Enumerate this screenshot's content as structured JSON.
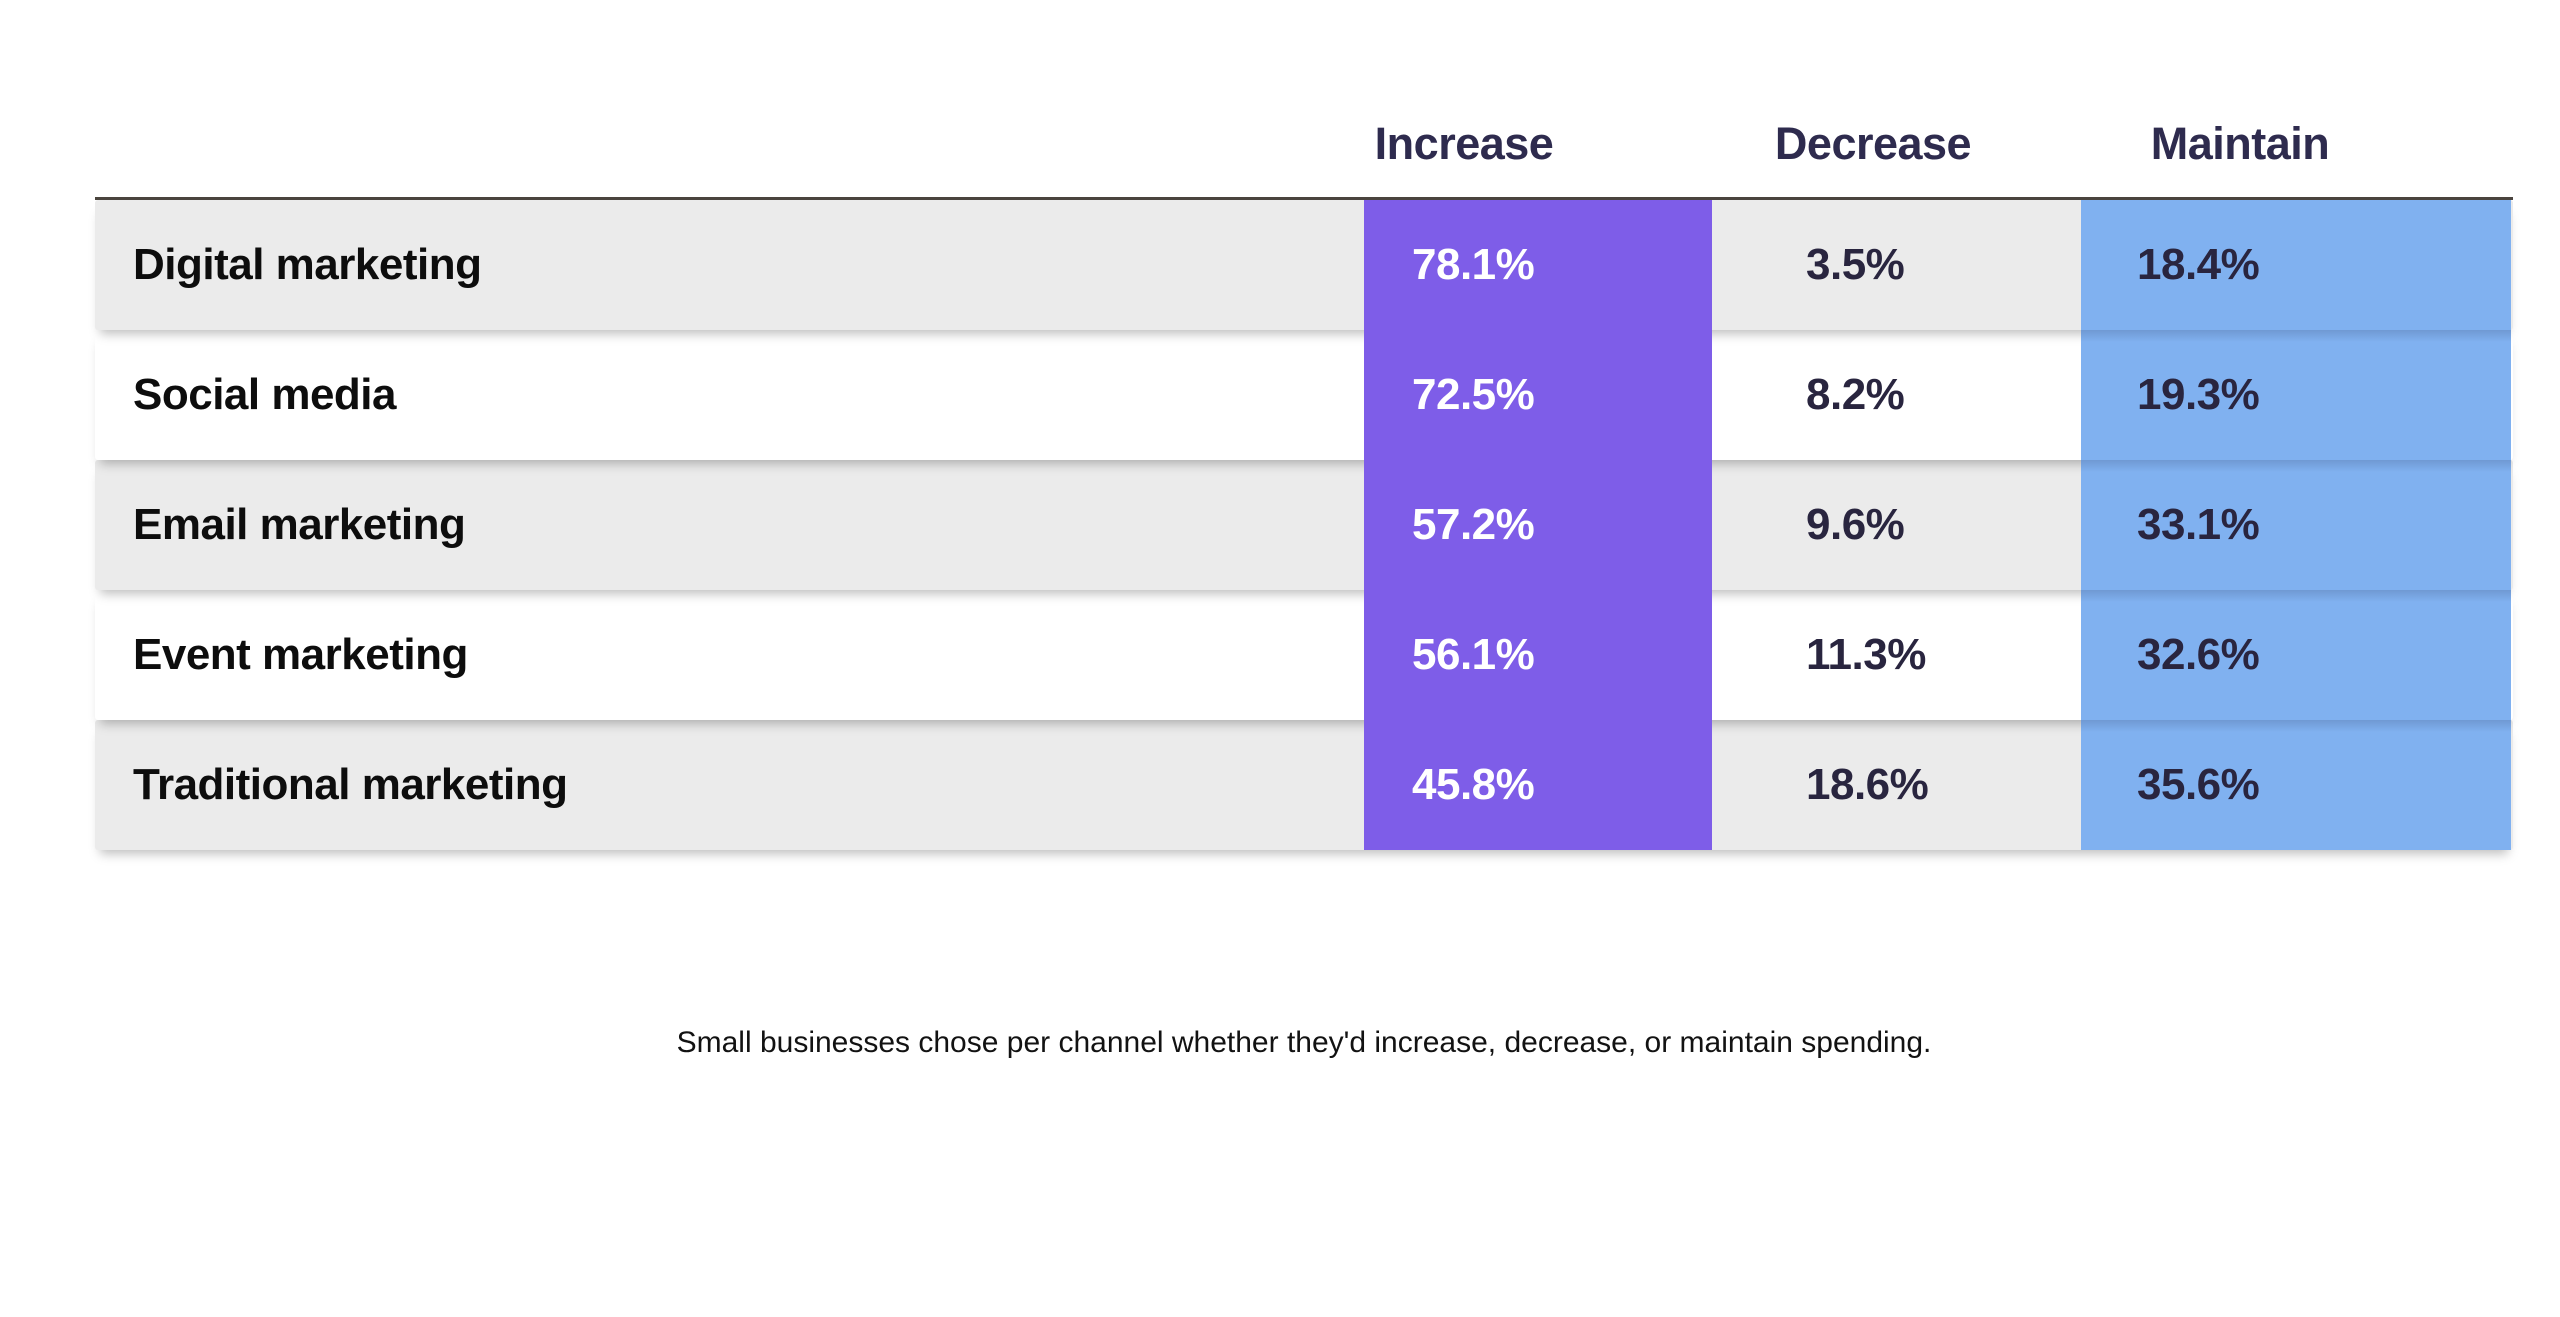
{
  "chart_data": {
    "type": "table",
    "title": "",
    "categories": [
      "Digital marketing",
      "Social media",
      "Email marketing",
      "Event marketing",
      "Traditional marketing"
    ],
    "columns": [
      "Increase",
      "Decrease",
      "Maintain"
    ],
    "series": [
      {
        "name": "Increase",
        "values": [
          78.1,
          72.5,
          57.2,
          56.1,
          45.8
        ]
      },
      {
        "name": "Decrease",
        "values": [
          3.5,
          8.2,
          9.6,
          11.3,
          18.6
        ]
      },
      {
        "name": "Maintain",
        "values": [
          18.4,
          19.3,
          33.1,
          32.6,
          35.6
        ]
      }
    ],
    "unit": "%",
    "caption": "Small businesses chose per channel whether they'd increase, decrease, or maintain spending.",
    "layout_hints": {
      "increase_column_highlight": "#7E5DE8",
      "maintain_column_highlight": "#80B1F0",
      "striped_rows": true,
      "grid": false,
      "legend_position": "none"
    }
  },
  "header": {
    "increase": "Increase",
    "decrease": "Decrease",
    "maintain": "Maintain"
  },
  "rows": [
    {
      "label": "Digital marketing",
      "increase": "78.1%",
      "decrease": "3.5%",
      "maintain": "18.4%"
    },
    {
      "label": "Social media",
      "increase": "72.5%",
      "decrease": "8.2%",
      "maintain": "19.3%"
    },
    {
      "label": "Email marketing",
      "increase": "57.2%",
      "decrease": "9.6%",
      "maintain": "33.1%"
    },
    {
      "label": "Event marketing",
      "increase": "56.1%",
      "decrease": "11.3%",
      "maintain": "32.6%"
    },
    {
      "label": "Traditional marketing",
      "increase": "45.8%",
      "decrease": "18.6%",
      "maintain": "35.6%"
    }
  ],
  "caption": {
    "text": "Small businesses chose per channel whether they'd increase, decrease, or maintain spending."
  },
  "colors": {
    "increase_column": "#7E5DE8",
    "maintain_column": "#80B1F0",
    "row_stripe_gray": "#EBEBEB",
    "row_stripe_white": "#FFFFFF",
    "header_text": "#2E2B4E",
    "value_text_dark": "#29253F",
    "increase_value_text": "#FFFFFF",
    "label_text": "#0D0D0D",
    "top_rule": "#4A443E"
  }
}
